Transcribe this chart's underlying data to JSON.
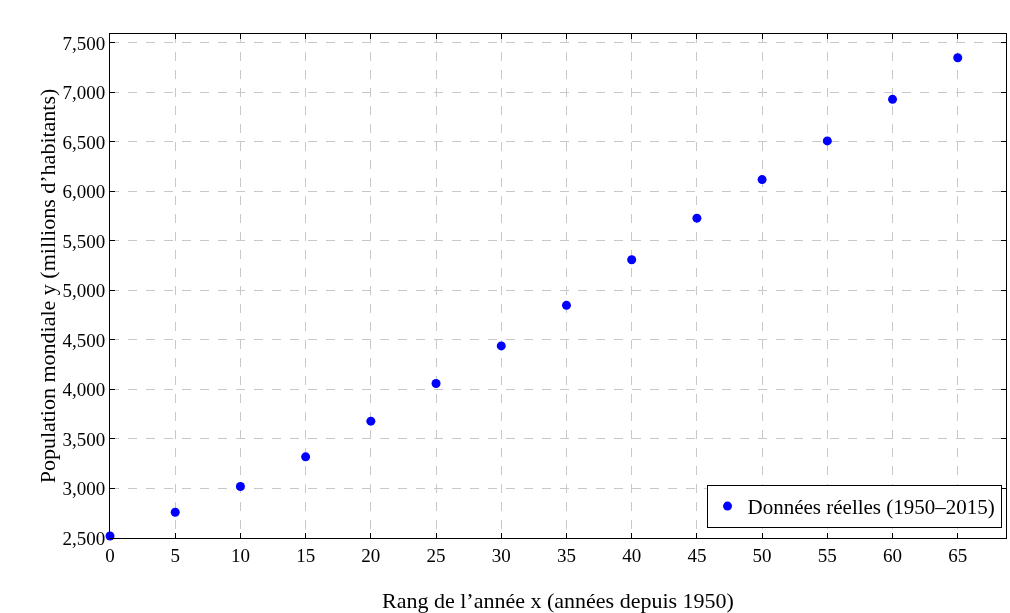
{
  "chart_data": {
    "type": "scatter",
    "xlabel": "Rang de l’année x (années depuis 1950)",
    "ylabel": "Population mondiale y (millions d’habitants)",
    "x": [
      0,
      5,
      10,
      15,
      20,
      25,
      30,
      35,
      40,
      45,
      50,
      55,
      60,
      65
    ],
    "series": [
      {
        "name": "Données réelles (1950–2015)",
        "color": "#0000ff",
        "values": [
          2520,
          2760,
          3020,
          3320,
          3680,
          4060,
          4440,
          4850,
          5310,
          5730,
          6120,
          6510,
          6930,
          7350
        ]
      }
    ],
    "xlim": [
      0,
      68.7
    ],
    "ylim": [
      2500,
      7590
    ],
    "xticks": [
      0,
      5,
      10,
      15,
      20,
      25,
      30,
      35,
      40,
      45,
      50,
      55,
      60,
      65
    ],
    "yticks": [
      {
        "value": 2500,
        "label": "2,500"
      },
      {
        "value": 3000,
        "label": "3,000"
      },
      {
        "value": 3500,
        "label": "3,500"
      },
      {
        "value": 4000,
        "label": "4,000"
      },
      {
        "value": 4500,
        "label": "4,500"
      },
      {
        "value": 5000,
        "label": "5,000"
      },
      {
        "value": 5500,
        "label": "5,500"
      },
      {
        "value": 6000,
        "label": "6,000"
      },
      {
        "value": 6500,
        "label": "6,500"
      },
      {
        "value": 7000,
        "label": "7,000"
      },
      {
        "value": 7500,
        "label": "7,500"
      }
    ],
    "grid": true,
    "line_style": "dashed",
    "legend": "bottom right",
    "marker": "circle"
  }
}
